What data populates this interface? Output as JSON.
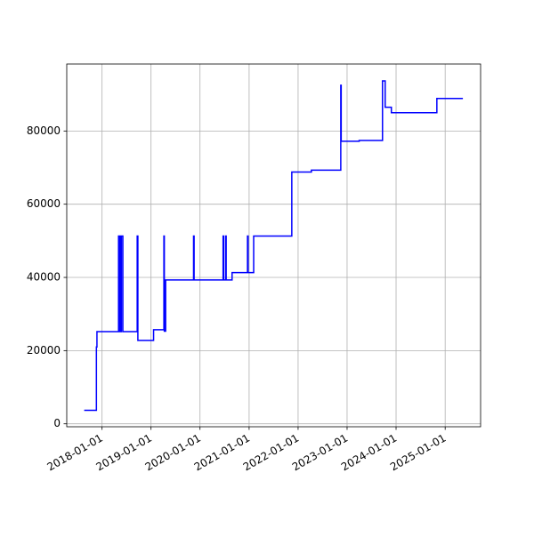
{
  "chart_data": {
    "type": "line",
    "x": [
      "2017-08-21",
      "2017-11-20",
      "2017-11-20",
      "2017-11-24",
      "2017-11-24",
      "2018-05-04",
      "2018-05-04",
      "2018-05-08",
      "2018-05-08",
      "2018-05-15",
      "2018-05-15",
      "2018-05-20",
      "2018-05-20",
      "2018-05-25",
      "2018-05-25",
      "2018-06-05",
      "2018-06-05",
      "2018-09-20",
      "2018-09-20",
      "2018-09-25",
      "2018-09-25",
      "2019-01-20",
      "2019-01-20",
      "2019-04-07",
      "2019-04-07",
      "2019-04-10",
      "2019-04-10",
      "2019-04-20",
      "2019-04-20",
      "2019-11-14",
      "2019-11-14",
      "2019-11-18",
      "2019-11-18",
      "2020-06-21",
      "2020-06-21",
      "2020-06-25",
      "2020-06-25",
      "2020-07-10",
      "2020-07-10",
      "2020-07-14",
      "2020-07-14",
      "2020-08-27",
      "2020-08-27",
      "2020-12-20",
      "2020-12-20",
      "2020-12-24",
      "2020-12-24",
      "2021-02-04",
      "2021-02-04",
      "2021-11-15",
      "2021-11-15",
      "2022-04-10",
      "2022-04-10",
      "2022-11-15",
      "2022-11-15",
      "2022-11-18",
      "2022-11-18",
      "2023-04-01",
      "2023-04-01",
      "2023-09-22",
      "2023-09-22",
      "2023-10-12",
      "2023-10-12",
      "2023-11-27",
      "2023-11-27",
      "2024-10-31",
      "2024-10-31",
      "2025-05-13"
    ],
    "series": [
      {
        "color": "#0000ff",
        "values": [
          3700,
          3700,
          21000,
          21000,
          25200,
          25200,
          51300,
          51300,
          25200,
          25200,
          51300,
          51300,
          25200,
          25200,
          51300,
          51300,
          25200,
          25200,
          51300,
          51300,
          22800,
          22800,
          25700,
          25700,
          51300,
          51300,
          25300,
          25300,
          39300,
          39300,
          51300,
          51300,
          39300,
          39300,
          51300,
          51300,
          39300,
          39300,
          51300,
          51300,
          39300,
          39300,
          41300,
          41300,
          51300,
          51300,
          41300,
          41300,
          51300,
          51300,
          68800,
          68800,
          69300,
          69300,
          92500,
          92500,
          77200,
          77200,
          77400,
          77400,
          93700,
          93700,
          86500,
          86500,
          85000,
          85000,
          88900,
          88900
        ]
      }
    ],
    "xlim": [
      "2017-04-13",
      "2025-09-22"
    ],
    "xticks": [
      "2018-01-01",
      "2019-01-01",
      "2020-01-01",
      "2021-01-01",
      "2022-01-01",
      "2023-01-01",
      "2024-01-01",
      "2025-01-01"
    ],
    "ylim": [
      -800,
      98300
    ],
    "yticks": [
      0,
      20000,
      40000,
      60000,
      80000
    ],
    "grid": true
  }
}
